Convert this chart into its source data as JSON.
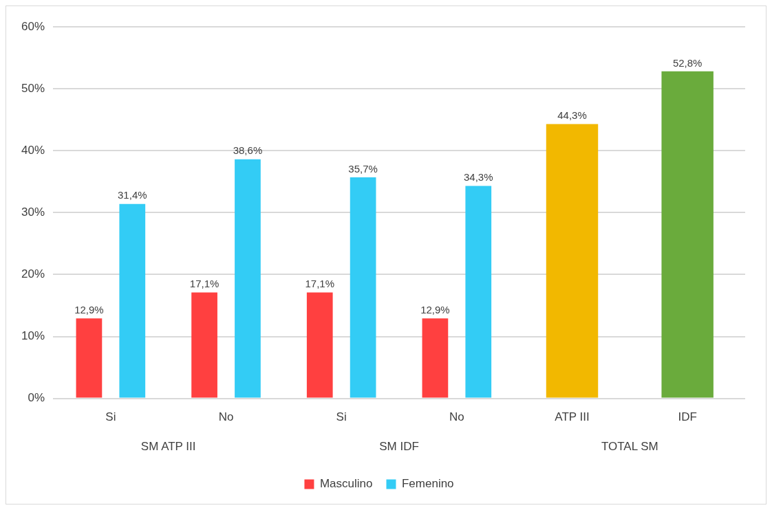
{
  "chart_data": {
    "type": "bar",
    "categories": [
      "Si",
      "No",
      "Si",
      "No",
      "ATP III",
      "IDF"
    ],
    "series": [
      {
        "name": "Masculino",
        "color": "#ff4040",
        "values": [
          12.9,
          17.1,
          17.1,
          12.9,
          null,
          null
        ],
        "value_labels": [
          "12,9%",
          "17,1%",
          "17,1%",
          "12,9%",
          null,
          null
        ]
      },
      {
        "name": "Femenino",
        "color": "#33ccf5",
        "values": [
          31.4,
          38.6,
          35.7,
          34.3,
          null,
          null
        ],
        "value_labels": [
          "31,4%",
          "38,6%",
          "35,7%",
          "34,3%",
          null,
          null
        ]
      },
      {
        "colors": [
          null,
          null,
          null,
          null,
          "#f2b800",
          "#6aab3c"
        ],
        "values": [
          null,
          null,
          null,
          null,
          44.3,
          52.8
        ],
        "value_labels": [
          null,
          null,
          null,
          null,
          "44,3%",
          "52,8%"
        ]
      }
    ],
    "annotations": [
      "SM ATP III",
      "SM IDF",
      "TOTAL SM"
    ],
    "ylim": [
      0,
      60
    ],
    "yticks": [
      {
        "value": 0,
        "label": "0%"
      },
      {
        "value": 10,
        "label": "10%"
      },
      {
        "value": 20,
        "label": "20%"
      },
      {
        "value": 30,
        "label": "30%"
      },
      {
        "value": 40,
        "label": "40%"
      },
      {
        "value": 50,
        "label": "50%"
      },
      {
        "value": 60,
        "label": "60%"
      }
    ],
    "grid": "y",
    "legend": "bottom"
  }
}
